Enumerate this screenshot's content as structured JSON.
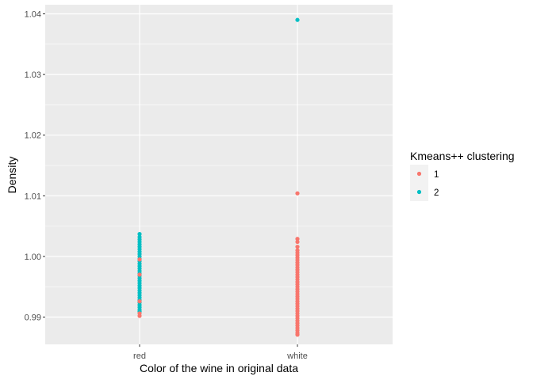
{
  "chart_data": {
    "type": "scatter",
    "xlabel": "Color of the wine in original data",
    "ylabel": "Density",
    "categories": [
      "red",
      "white"
    ],
    "ylim": [
      0.9855,
      1.0415
    ],
    "y_ticks": [
      0.99,
      1.0,
      1.01,
      1.02,
      1.03,
      1.04
    ],
    "y_tick_labels": [
      "0.99",
      "1.00",
      "1.01",
      "1.02",
      "1.03",
      "1.04"
    ],
    "grid": true,
    "legend": {
      "title": "Kmeans++ clustering",
      "placement": "right",
      "entries": [
        {
          "label": "1",
          "color": "#F8766D"
        },
        {
          "label": "2",
          "color": "#00BFC4"
        }
      ]
    },
    "series": [
      {
        "name": "1",
        "color": "#F8766D",
        "points": [
          {
            "x": "red",
            "y": 0.9902
          },
          {
            "x": "red",
            "y": 0.9906
          },
          {
            "x": "red",
            "y": 0.9926
          },
          {
            "x": "red",
            "y": 0.997
          },
          {
            "x": "red",
            "y": 0.9995
          },
          {
            "x": "white",
            "y": 1.0104
          },
          {
            "x": "white",
            "y": 1.0029
          },
          {
            "x": "white",
            "y": 1.0024
          },
          {
            "x": "white",
            "y": 1.0016
          },
          {
            "x": "white",
            "y": 1.001
          },
          {
            "x": "white",
            "y": 1.0006
          },
          {
            "x": "white",
            "y": 1.0002
          },
          {
            "x": "white",
            "y": 0.9998
          },
          {
            "x": "white",
            "y": 0.9994
          },
          {
            "x": "white",
            "y": 0.999
          },
          {
            "x": "white",
            "y": 0.9986
          },
          {
            "x": "white",
            "y": 0.9982
          },
          {
            "x": "white",
            "y": 0.9978
          },
          {
            "x": "white",
            "y": 0.9974
          },
          {
            "x": "white",
            "y": 0.997
          },
          {
            "x": "white",
            "y": 0.9966
          },
          {
            "x": "white",
            "y": 0.9962
          },
          {
            "x": "white",
            "y": 0.9958
          },
          {
            "x": "white",
            "y": 0.9954
          },
          {
            "x": "white",
            "y": 0.995
          },
          {
            "x": "white",
            "y": 0.9946
          },
          {
            "x": "white",
            "y": 0.9942
          },
          {
            "x": "white",
            "y": 0.9938
          },
          {
            "x": "white",
            "y": 0.9934
          },
          {
            "x": "white",
            "y": 0.993
          },
          {
            "x": "white",
            "y": 0.9926
          },
          {
            "x": "white",
            "y": 0.9922
          },
          {
            "x": "white",
            "y": 0.9918
          },
          {
            "x": "white",
            "y": 0.9914
          },
          {
            "x": "white",
            "y": 0.991
          },
          {
            "x": "white",
            "y": 0.9906
          },
          {
            "x": "white",
            "y": 0.9902
          },
          {
            "x": "white",
            "y": 0.9898
          },
          {
            "x": "white",
            "y": 0.9894
          },
          {
            "x": "white",
            "y": 0.989
          },
          {
            "x": "white",
            "y": 0.9886
          },
          {
            "x": "white",
            "y": 0.9882
          },
          {
            "x": "white",
            "y": 0.9878
          },
          {
            "x": "white",
            "y": 0.9874
          },
          {
            "x": "white",
            "y": 0.9871
          }
        ]
      },
      {
        "name": "2",
        "color": "#00BFC4",
        "points": [
          {
            "x": "white",
            "y": 1.039
          },
          {
            "x": "red",
            "y": 1.0037
          },
          {
            "x": "red",
            "y": 1.0032
          },
          {
            "x": "red",
            "y": 1.0028
          },
          {
            "x": "red",
            "y": 1.0024
          },
          {
            "x": "red",
            "y": 1.002
          },
          {
            "x": "red",
            "y": 1.0016
          },
          {
            "x": "red",
            "y": 1.0012
          },
          {
            "x": "red",
            "y": 1.0008
          },
          {
            "x": "red",
            "y": 1.0004
          },
          {
            "x": "red",
            "y": 1.0
          },
          {
            "x": "red",
            "y": 0.9996
          },
          {
            "x": "red",
            "y": 0.9992
          },
          {
            "x": "red",
            "y": 0.9988
          },
          {
            "x": "red",
            "y": 0.9984
          },
          {
            "x": "red",
            "y": 0.998
          },
          {
            "x": "red",
            "y": 0.9976
          },
          {
            "x": "red",
            "y": 0.9972
          },
          {
            "x": "red",
            "y": 0.9968
          },
          {
            "x": "red",
            "y": 0.9964
          },
          {
            "x": "red",
            "y": 0.996
          },
          {
            "x": "red",
            "y": 0.9956
          },
          {
            "x": "red",
            "y": 0.9952
          },
          {
            "x": "red",
            "y": 0.9948
          },
          {
            "x": "red",
            "y": 0.9944
          },
          {
            "x": "red",
            "y": 0.994
          },
          {
            "x": "red",
            "y": 0.9936
          },
          {
            "x": "red",
            "y": 0.9932
          },
          {
            "x": "red",
            "y": 0.9928
          },
          {
            "x": "red",
            "y": 0.9924
          },
          {
            "x": "red",
            "y": 0.992
          },
          {
            "x": "red",
            "y": 0.9916
          },
          {
            "x": "red",
            "y": 0.9912
          },
          {
            "x": "red",
            "y": 0.9909
          }
        ]
      }
    ]
  }
}
